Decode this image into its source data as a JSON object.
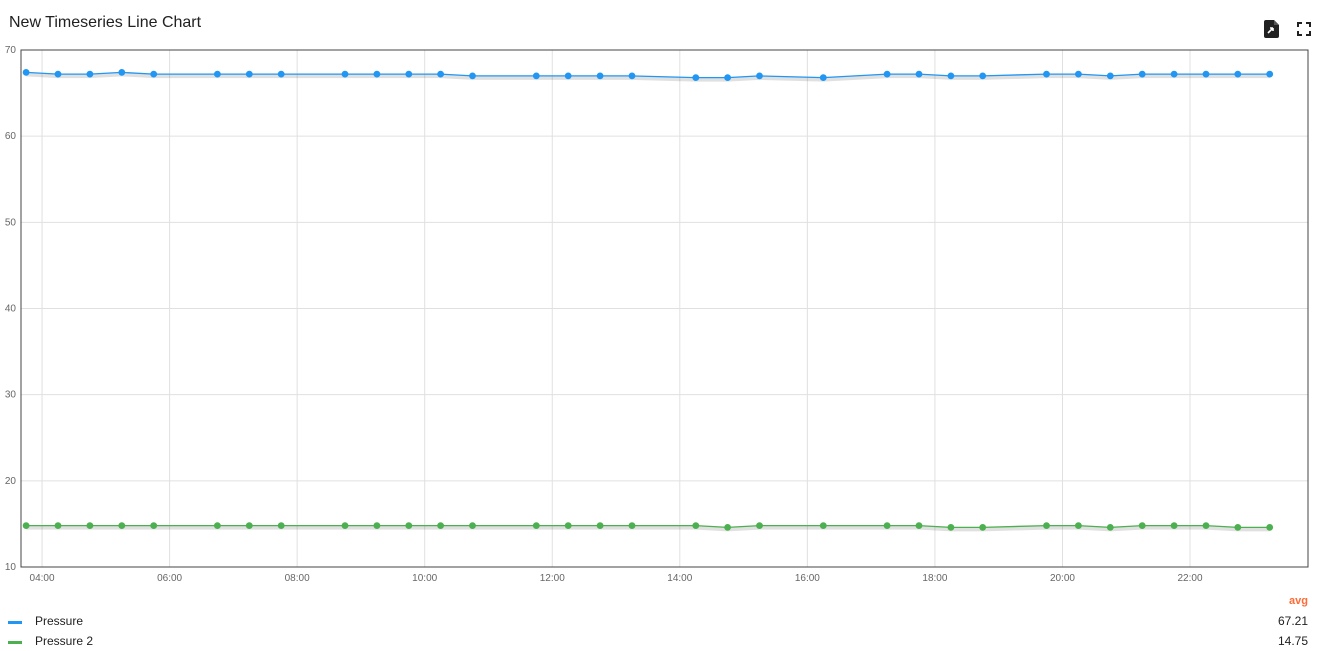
{
  "widget": {
    "title": "New Timeseries Line Chart",
    "export_icon": "file-export-icon",
    "fullscreen_icon": "fullscreen-icon"
  },
  "legend": {
    "stat_header": "avg",
    "stat_header_color": "#ff6b35",
    "items": [
      {
        "label": "Pressure",
        "value": "67.21",
        "color": "#2196f3"
      },
      {
        "label": "Pressure 2",
        "value": "14.75",
        "color": "#4caf50"
      }
    ]
  },
  "chart_data": {
    "type": "line",
    "ylim": [
      10,
      70
    ],
    "y_ticks": [
      10,
      20,
      30,
      40,
      50,
      60,
      70
    ],
    "x_tick_labels": [
      "04:00",
      "06:00",
      "08:00",
      "10:00",
      "12:00",
      "14:00",
      "16:00",
      "18:00",
      "20:00",
      "22:00"
    ],
    "x_tick_hours": [
      4,
      6,
      8,
      10,
      12,
      14,
      16,
      18,
      20,
      22
    ],
    "xlim_hours": [
      3.67,
      23.85
    ],
    "grid": true,
    "series": [
      {
        "name": "Pressure",
        "color": "#2196f3",
        "x_hours": [
          3.75,
          4.25,
          4.75,
          5.25,
          5.75,
          6.75,
          7.25,
          7.75,
          8.75,
          9.25,
          9.75,
          10.25,
          10.75,
          11.75,
          12.25,
          12.75,
          13.25,
          14.25,
          14.75,
          15.25,
          16.25,
          17.25,
          17.75,
          18.25,
          18.75,
          19.75,
          20.25,
          20.75,
          21.25,
          21.75,
          22.25,
          22.75,
          23.25
        ],
        "values": [
          67.4,
          67.2,
          67.2,
          67.4,
          67.2,
          67.2,
          67.2,
          67.2,
          67.2,
          67.2,
          67.2,
          67.2,
          67.0,
          67.0,
          67.0,
          67.0,
          67.0,
          66.8,
          66.8,
          67.0,
          66.8,
          67.2,
          67.2,
          67.0,
          67.0,
          67.2,
          67.2,
          67.0,
          67.2,
          67.2,
          67.2,
          67.2,
          67.2
        ]
      },
      {
        "name": "Pressure 2",
        "color": "#4caf50",
        "x_hours": [
          3.75,
          4.25,
          4.75,
          5.25,
          5.75,
          6.75,
          7.25,
          7.75,
          8.75,
          9.25,
          9.75,
          10.25,
          10.75,
          11.75,
          12.25,
          12.75,
          13.25,
          14.25,
          14.75,
          15.25,
          16.25,
          17.25,
          17.75,
          18.25,
          18.75,
          19.75,
          20.25,
          20.75,
          21.25,
          21.75,
          22.25,
          22.75,
          23.25
        ],
        "values": [
          14.8,
          14.8,
          14.8,
          14.8,
          14.8,
          14.8,
          14.8,
          14.8,
          14.8,
          14.8,
          14.8,
          14.8,
          14.8,
          14.8,
          14.8,
          14.8,
          14.8,
          14.8,
          14.6,
          14.8,
          14.8,
          14.8,
          14.8,
          14.6,
          14.6,
          14.8,
          14.8,
          14.6,
          14.8,
          14.8,
          14.8,
          14.6,
          14.6
        ]
      }
    ]
  }
}
